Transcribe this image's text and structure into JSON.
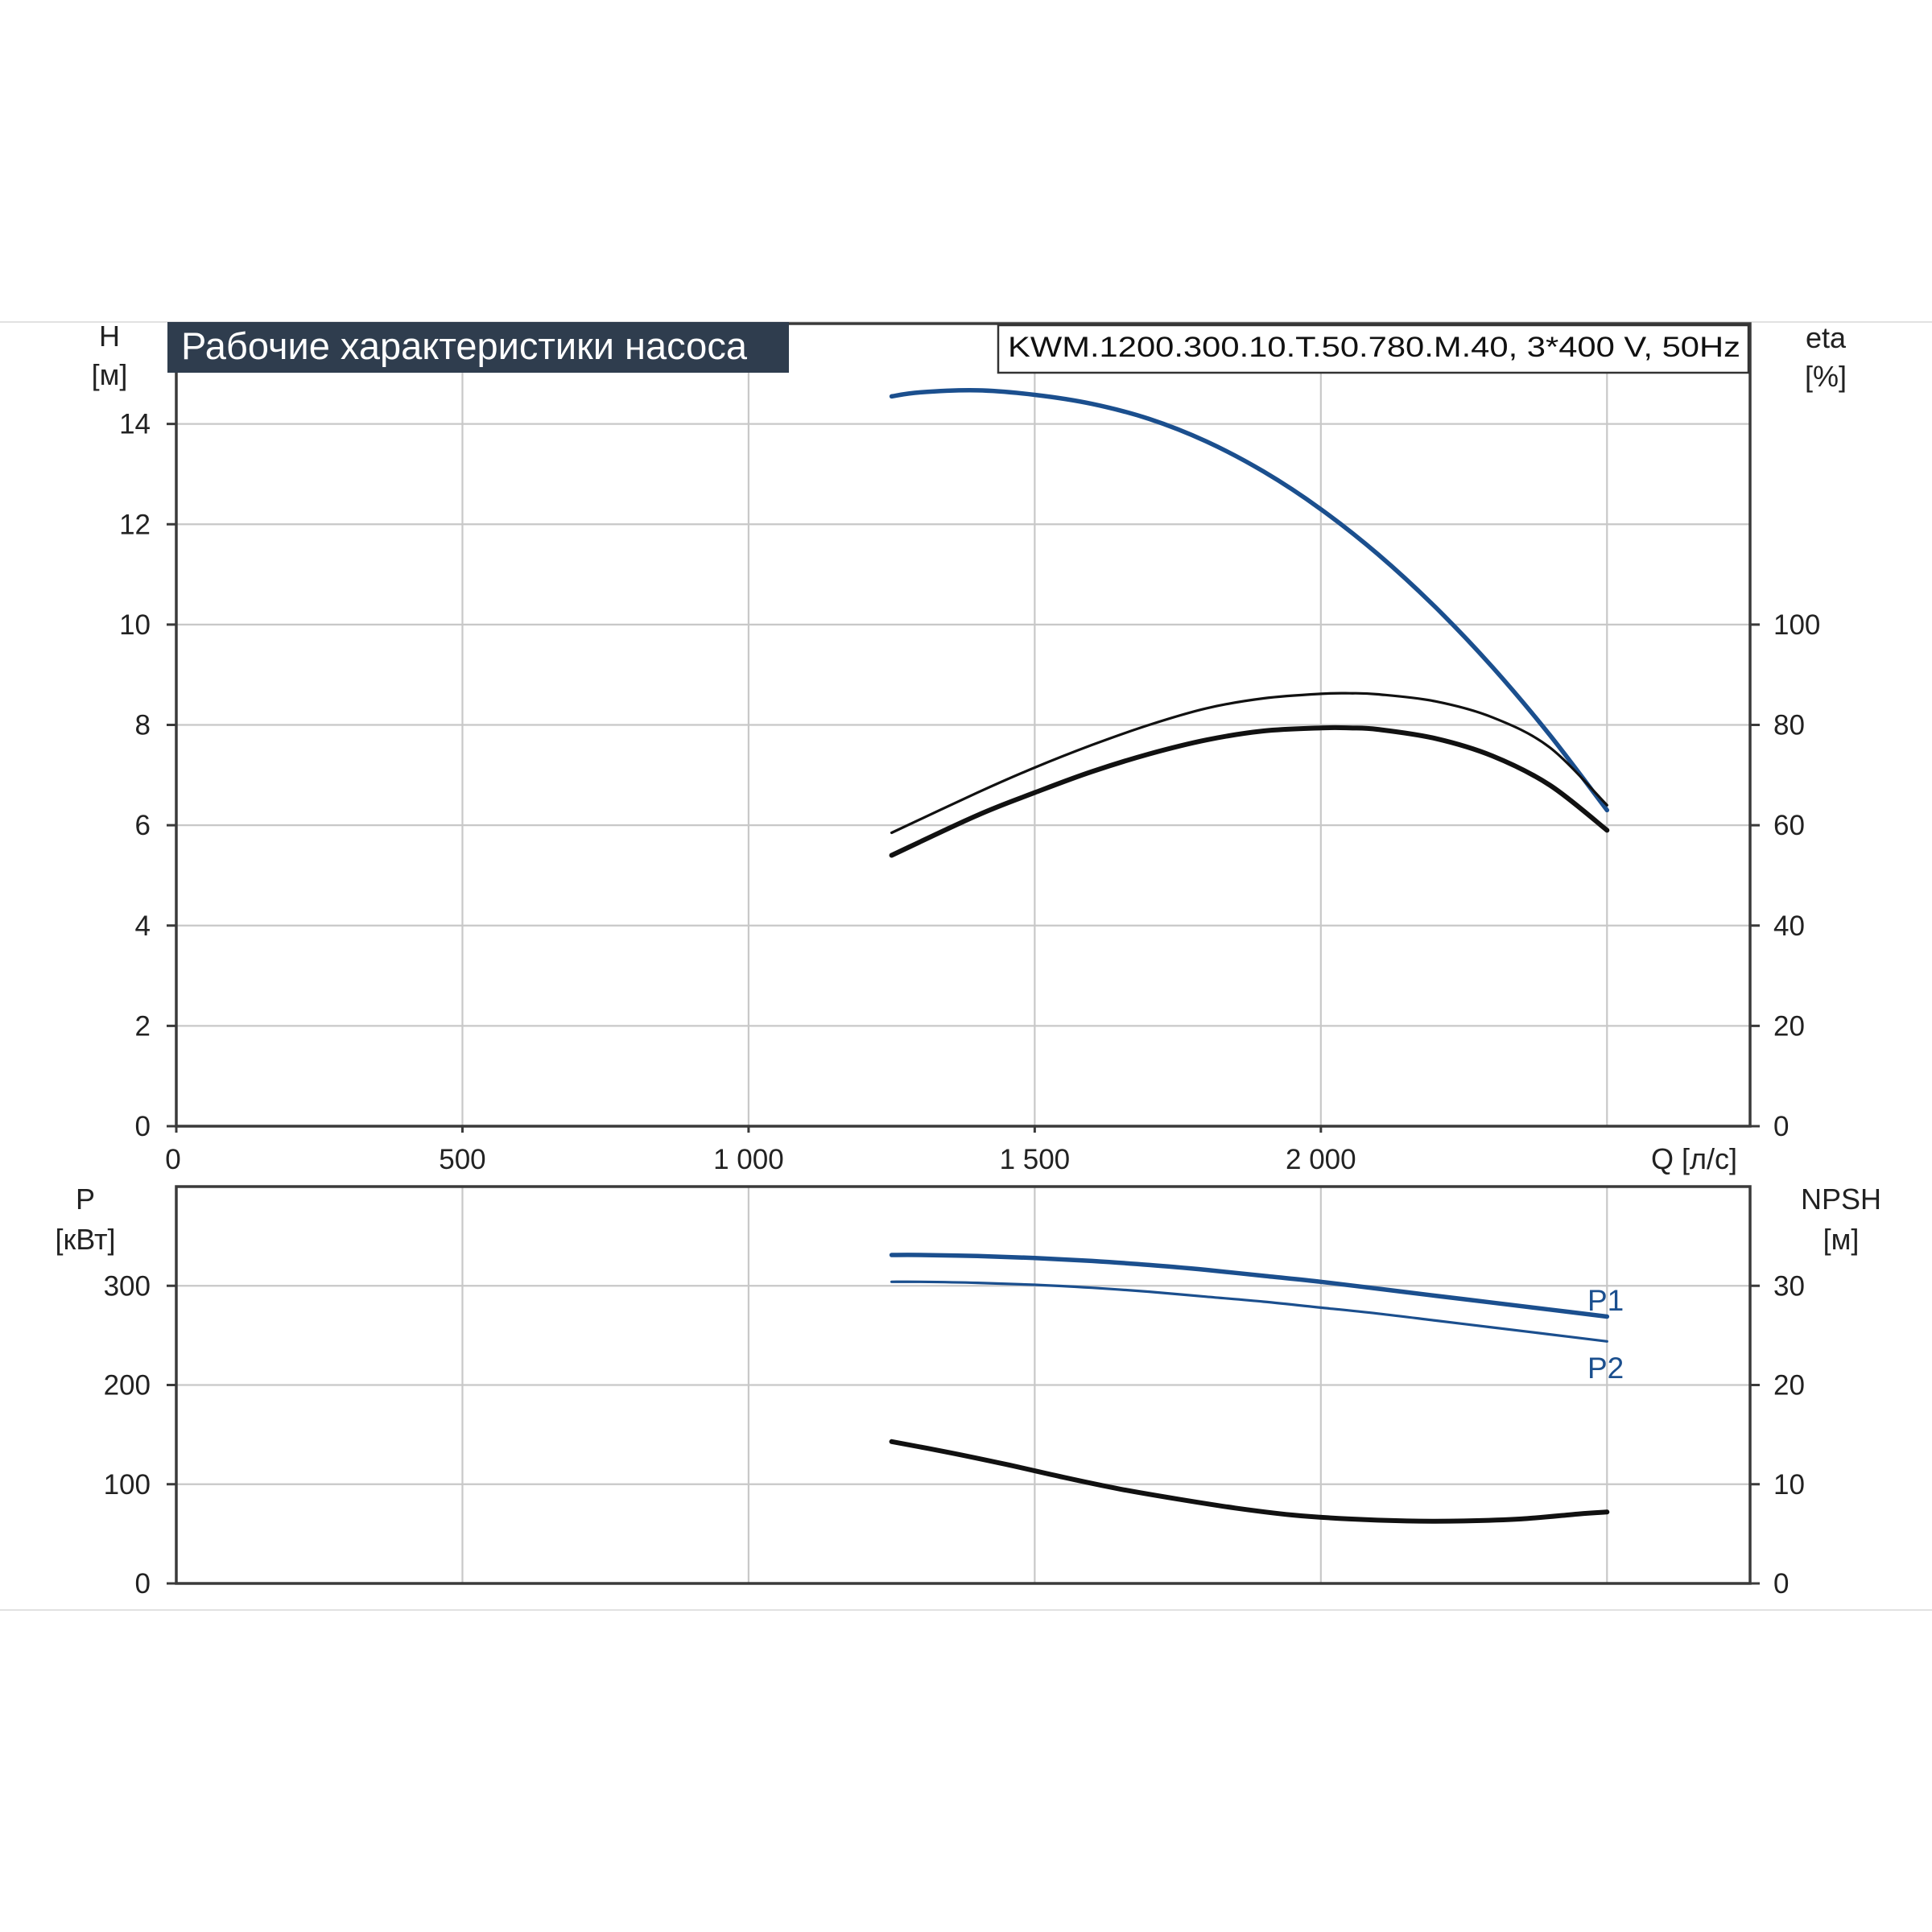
{
  "title": "Рабочие характеристики насоса",
  "model": "KWM.1200.300.10.T.50.780.M.40, 3*400 V, 50Hz",
  "colors": {
    "blue": "#1b4f8e",
    "black": "#111111",
    "title_bg": "#2f3d4e",
    "grid": "#c8c8c8"
  },
  "axes": {
    "h_label": "H",
    "h_unit": "[м]",
    "eta_label": "eta",
    "eta_unit": "[%]",
    "q_label": "Q [л/с]",
    "p_label": "P",
    "p_unit": "[кВт]",
    "npsh_label": "NPSH",
    "npsh_unit": "[м]"
  },
  "x_ticks": [
    "0",
    "500",
    "1 000",
    "1 500",
    "2 000"
  ],
  "h_ticks": [
    "0",
    "2",
    "4",
    "6",
    "8",
    "10",
    "12",
    "14"
  ],
  "eta_ticks": [
    "0",
    "20",
    "40",
    "60",
    "80",
    "100"
  ],
  "p_ticks": [
    "0",
    "100",
    "200",
    "300"
  ],
  "npsh_ticks": [
    "0",
    "10",
    "20",
    "30"
  ],
  "series_labels": {
    "p1": "P1",
    "p2": "P2"
  },
  "chart_data": [
    {
      "type": "line",
      "title": "Рабочие характеристики насоса",
      "xlabel": "Q [л/с]",
      "ylabel": "H [м]",
      "y2label": "eta [%]",
      "xlim": [
        0,
        2750
      ],
      "ylim": [
        0,
        16
      ],
      "y2lim": [
        0,
        160
      ],
      "grid": true,
      "series": [
        {
          "axis": "H",
          "color": "#1b4f8e",
          "x": [
            1250,
            1300,
            1400,
            1500,
            1600,
            1700,
            1800,
            1900,
            2000,
            2100,
            2200,
            2300,
            2400,
            2500
          ],
          "y": [
            14.55,
            14.63,
            14.67,
            14.58,
            14.4,
            14.1,
            13.65,
            13.05,
            12.3,
            11.4,
            10.35,
            9.15,
            7.8,
            6.3
          ]
        },
        {
          "axis": "eta",
          "color": "#111111",
          "x": [
            1250,
            1400,
            1500,
            1600,
            1700,
            1800,
            1900,
            2000,
            2050,
            2100,
            2200,
            2300,
            2400,
            2500
          ],
          "y": [
            58.5,
            66.5,
            71.5,
            76,
            80,
            83.3,
            85.3,
            86.2,
            86.3,
            86.1,
            84.7,
            81.5,
            75.5,
            64
          ]
        },
        {
          "axis": "eta",
          "color": "#111111",
          "x": [
            1250,
            1400,
            1500,
            1600,
            1700,
            1800,
            1900,
            2000,
            2050,
            2100,
            2200,
            2300,
            2400,
            2500
          ],
          "y": [
            54,
            62,
            66.5,
            70.7,
            74.2,
            77,
            78.8,
            79.4,
            79.4,
            79.1,
            77.3,
            73.8,
            68,
            59
          ]
        }
      ]
    },
    {
      "type": "line",
      "xlabel": "Q [л/с]",
      "ylabel": "P [кВт]",
      "y2label": "NPSH [м]",
      "xlim": [
        0,
        2750
      ],
      "ylim": [
        0,
        400
      ],
      "y2lim": [
        0,
        40
      ],
      "grid": true,
      "series": [
        {
          "name": "P1",
          "axis": "P",
          "color": "#1b4f8e",
          "x": [
            1250,
            1300,
            1400,
            1500,
            1600,
            1700,
            1800,
            1900,
            2000,
            2100,
            2200,
            2300,
            2400,
            2500
          ],
          "y": [
            331,
            331,
            330,
            328,
            325,
            321,
            316,
            310,
            304,
            297,
            290,
            283,
            276,
            269
          ]
        },
        {
          "name": "P2",
          "axis": "P",
          "color": "#1b4f8e",
          "x": [
            1250,
            1300,
            1400,
            1500,
            1600,
            1700,
            1800,
            1900,
            2000,
            2100,
            2200,
            2300,
            2400,
            2500
          ],
          "y": [
            304,
            304,
            303,
            301,
            298,
            294,
            289,
            284,
            278,
            272,
            265,
            258,
            251,
            244
          ]
        },
        {
          "axis": "NPSH",
          "color": "#111111",
          "x": [
            1250,
            1350,
            1450,
            1550,
            1650,
            1750,
            1850,
            1950,
            2050,
            2150,
            2250,
            2350,
            2450,
            2500
          ],
          "y": [
            14.3,
            13.2,
            12.0,
            10.7,
            9.5,
            8.5,
            7.6,
            6.9,
            6.5,
            6.3,
            6.3,
            6.5,
            7.0,
            7.2
          ]
        }
      ]
    }
  ]
}
